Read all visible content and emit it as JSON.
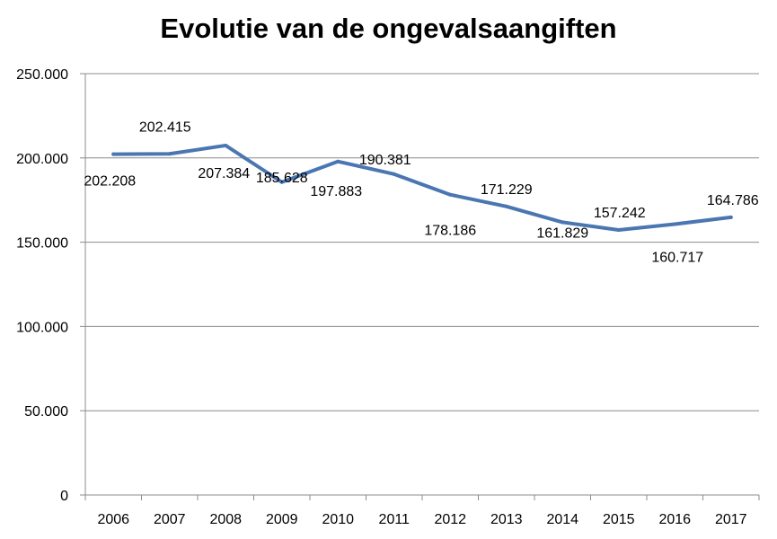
{
  "chart_data": {
    "type": "line",
    "title": "Evolutie van de ongevalsaangiften",
    "categories": [
      "2006",
      "2007",
      "2008",
      "2009",
      "2010",
      "2011",
      "2012",
      "2013",
      "2014",
      "2015",
      "2016",
      "2017"
    ],
    "series": [
      {
        "values": [
          202208,
          202415,
          207384,
          185628,
          197883,
          190381,
          178186,
          171229,
          161829,
          157242,
          160717,
          164786
        ],
        "data_labels": [
          "202.208",
          "202.415",
          "207.384",
          "185.628",
          "197.883",
          "190.381",
          "178.186",
          "171.229",
          "161.829",
          "157.242",
          "160.717",
          "164.786"
        ],
        "color": "#4a76b1"
      }
    ],
    "ylim": [
      0,
      250000
    ],
    "y_ticks": [
      0,
      50000,
      100000,
      150000,
      200000,
      250000
    ],
    "y_tick_labels": [
      "0",
      "50.000",
      "100.000",
      "150.000",
      "200.000",
      "250.000"
    ],
    "grid": true,
    "legend": "none",
    "xlabel": "",
    "ylabel": ""
  }
}
